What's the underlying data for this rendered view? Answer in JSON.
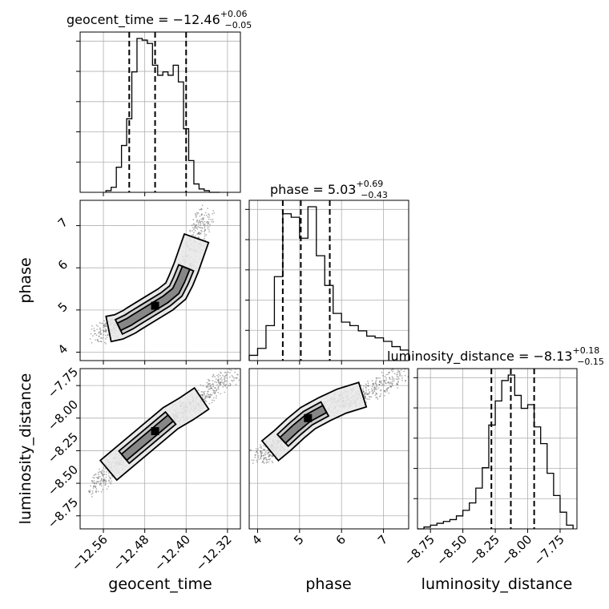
{
  "chart_data": {
    "type": "corner",
    "parameters": [
      "geocent_time",
      "phase",
      "luminosity_distance"
    ],
    "axis_labels": {
      "geocent_time": "geocent_time",
      "phase": "phase",
      "luminosity_distance": "luminosity_distance"
    },
    "titles": {
      "geocent_time": {
        "name": "geocent_time",
        "median": "−12.46",
        "plus": "+0.06",
        "minus": "−0.05"
      },
      "phase": {
        "name": "phase",
        "median": "5.03",
        "plus": "+0.69",
        "minus": "−0.43"
      },
      "luminosity_distance": {
        "name": "luminosity_distance",
        "median": "−8.13",
        "plus": "+0.18",
        "minus": "−0.15"
      }
    },
    "ranges": {
      "geocent_time": [
        -12.605,
        -12.295
      ],
      "phase": [
        3.8,
        7.6
      ],
      "luminosity_distance": [
        -8.85,
        -7.62
      ]
    },
    "ticks": {
      "geocent_time": [
        -12.56,
        -12.48,
        -12.4,
        -12.32
      ],
      "phase_x": [
        4,
        5,
        6,
        7
      ],
      "phase_y": [
        4,
        5,
        6,
        7
      ],
      "luminosity_distance": [
        -8.75,
        -8.5,
        -8.25,
        -8.0,
        -7.75
      ]
    },
    "tick_labels": {
      "geocent_time": [
        "−12.56",
        "−12.48",
        "−12.40",
        "−12.32"
      ],
      "phase": [
        "4",
        "5",
        "6",
        "7"
      ],
      "luminosity_distance": [
        "−8.75",
        "−8.50",
        "−8.25",
        "−8.00",
        "−7.75"
      ]
    },
    "quantiles": {
      "geocent_time": [
        -12.51,
        -12.46,
        -12.4
      ],
      "phase": [
        4.6,
        5.03,
        5.72
      ],
      "luminosity_distance": [
        -8.28,
        -8.13,
        -7.95
      ]
    },
    "histograms": {
      "geocent_time": {
        "bin_edges": [
          -12.555,
          -12.545,
          -12.535,
          -12.525,
          -12.515,
          -12.505,
          -12.495,
          -12.485,
          -12.475,
          -12.465,
          -12.455,
          -12.445,
          -12.435,
          -12.425,
          -12.415,
          -12.405,
          -12.395,
          -12.385,
          -12.375,
          -12.365,
          -12.355,
          -12.345,
          -12.335
        ],
        "counts": [
          1,
          3,
          15,
          28,
          44,
          72,
          92,
          91,
          89,
          76,
          70,
          72,
          70,
          76,
          66,
          38,
          19,
          5,
          2,
          1,
          0,
          0
        ]
      },
      "phase": {
        "bin_edges": [
          3.8,
          4.0,
          4.2,
          4.4,
          4.6,
          4.8,
          5.0,
          5.2,
          5.4,
          5.6,
          5.8,
          6.0,
          6.2,
          6.4,
          6.6,
          6.8,
          7.0,
          7.2,
          7.4,
          7.6
        ],
        "counts": [
          3,
          7,
          20,
          48,
          84,
          82,
          70,
          88,
          60,
          43,
          27,
          22,
          20,
          17,
          14,
          13,
          11,
          8,
          6
        ]
      },
      "luminosity_distance": {
        "bin_edges": [
          -8.85,
          -8.8,
          -8.75,
          -8.7,
          -8.65,
          -8.6,
          -8.55,
          -8.5,
          -8.45,
          -8.4,
          -8.35,
          -8.3,
          -8.25,
          -8.2,
          -8.15,
          -8.1,
          -8.05,
          -8.0,
          -7.95,
          -7.9,
          -7.85,
          -7.8,
          -7.75,
          -7.7,
          -7.65
        ],
        "counts": [
          0,
          1,
          2,
          3,
          4,
          5,
          7,
          10,
          14,
          22,
          33,
          56,
          69,
          80,
          83,
          72,
          65,
          67,
          55,
          46,
          30,
          18,
          9,
          2
        ]
      }
    },
    "scatter_path": {
      "geocent_time_vs_phase": {
        "x": [
          -12.57,
          -12.55,
          -12.53,
          -12.51,
          -12.5,
          -12.48,
          -12.46,
          -12.44,
          -12.42,
          -12.41,
          -12.4,
          -12.39,
          -12.38,
          -12.37,
          -12.36
        ],
        "y": [
          4.4,
          4.55,
          4.6,
          4.72,
          4.8,
          4.95,
          5.1,
          5.25,
          5.45,
          5.7,
          6.0,
          6.35,
          6.7,
          7.0,
          7.3
        ]
      },
      "geocent_time_vs_luminosity_distance": {
        "x": [
          -12.58,
          -12.55,
          -12.52,
          -12.49,
          -12.46,
          -12.43,
          -12.4,
          -12.37,
          -12.34,
          -12.31
        ],
        "y": [
          -8.55,
          -8.4,
          -8.3,
          -8.2,
          -8.1,
          -8.0,
          -7.93,
          -7.85,
          -7.75,
          -7.65
        ]
      },
      "phase_vs_luminosity_distance": {
        "x": [
          4.0,
          4.3,
          4.6,
          4.9,
          5.2,
          5.6,
          6.0,
          6.5,
          7.0,
          7.5
        ],
        "y": [
          -8.32,
          -8.25,
          -8.17,
          -8.08,
          -8.0,
          -7.93,
          -7.87,
          -7.82,
          -7.75,
          -7.65
        ]
      }
    },
    "grid": true
  }
}
